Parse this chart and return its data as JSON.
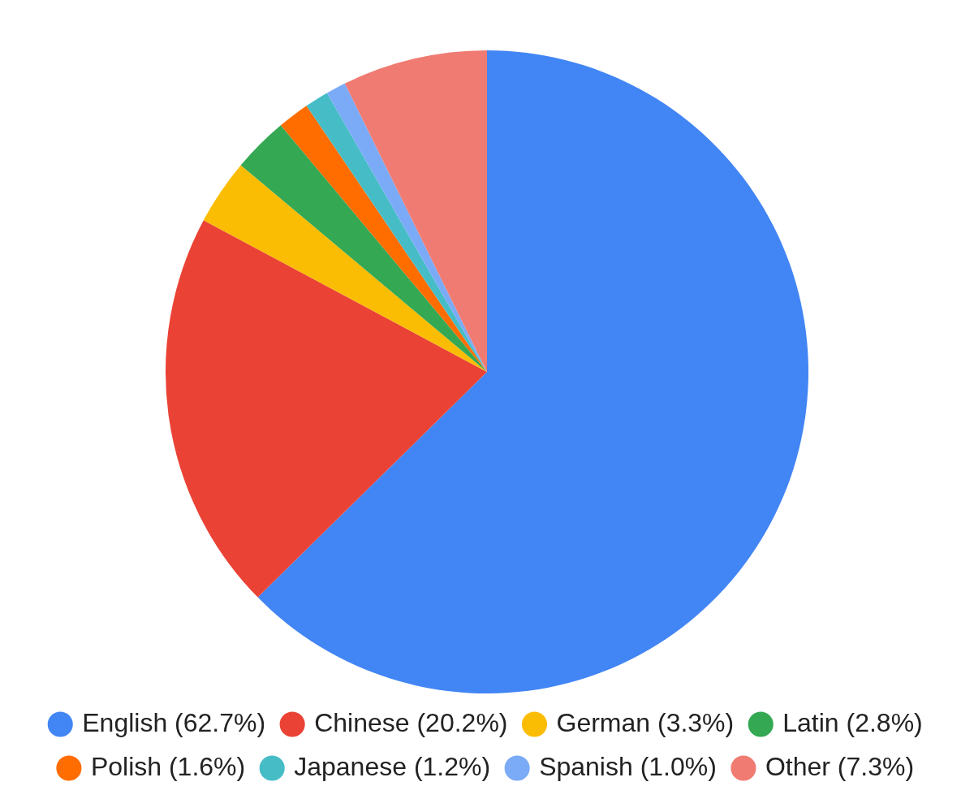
{
  "chart_data": {
    "type": "pie",
    "categories": [
      "English (62.7%)",
      "Chinese (20.2%)",
      "German (3.3%)",
      "Latin (2.8%)",
      "Polish (1.6%)",
      "Japanese (1.2%)",
      "Spanish (1.0%)",
      "Other (7.3%)"
    ],
    "values": [
      62.7,
      20.2,
      3.3,
      2.8,
      1.6,
      1.2,
      1.0,
      7.3
    ],
    "colors": [
      "#4285f4",
      "#ea4335",
      "#fbbc04",
      "#34a853",
      "#ff6d01",
      "#46bdc6",
      "#7baaf7",
      "#f07b72"
    ],
    "legend": "bottom"
  }
}
